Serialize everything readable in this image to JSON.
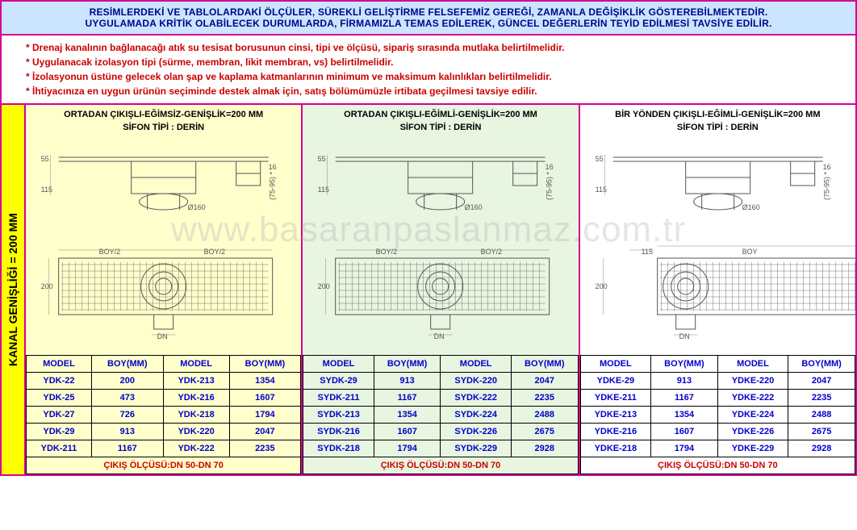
{
  "header": {
    "line1": "RESİMLERDEKİ VE TABLOLARDAKİ ÖLÇÜLER, SÜREKLİ GELİŞTİRME FELSEFEMİZ GEREĞİ, ZAMANLA DEĞİŞİKLİK GÖSTEREBİLMEKTEDİR.",
    "line2": "UYGULAMADA KRİTİK OLABİLECEK DURUMLARDA, FİRMAMIZLA TEMAS EDİLEREK, GÜNCEL DEĞERLERİN TEYİD EDİLMESİ TAVSİYE EDİLİR."
  },
  "notices": [
    "* Drenaj kanalının bağlanacağı atık su tesisat borusunun cinsi, tipi ve ölçüsü, sipariş sırasında mutlaka belirtilmelidir.",
    "* Uygulanacak izolasyon tipi (sürme, membran, likit membran, vs) belirtilmelidir.",
    "* İzolasyonun üstüne gelecek olan şap ve kaplama katmanlarının minimum ve maksimum kalınlıkları belirtilmelidir.",
    "* İhtiyacınıza en uygun ürünün seçiminde destek almak için, satış bölümümüzle irtibata geçilmesi tavsiye edilir."
  ],
  "side_label": "KANAL GENİŞLİĞİ = 200 MM",
  "watermark": "www.basaranpaslanmaz.com.tr",
  "colors": {
    "border": "#d60095",
    "header_bg": "#cce5ff",
    "header_text": "#00008b",
    "notice_text": "#cc0000",
    "side_bg": "#ffff00",
    "panel1_bg": "#ffffcc",
    "panel2_bg": "#e8f5e0",
    "panel3_bg": "#ffffff",
    "table_text": "#0000cc",
    "footer_text": "#cc0000",
    "diagram_stroke": "#555555",
    "diagram_dim": "#888888"
  },
  "panels": [
    {
      "title": "ORTADAN ÇIKIŞLI-EĞİMSİZ-GENİŞLİK=200 MM",
      "subtitle": "SİFON TİPİ : DERİN",
      "bg": "bg-yellow",
      "diagram_labels": {
        "h1": "55",
        "h2": "115",
        "d": "Ø160",
        "r1": "16",
        "r2": "(75-95) *",
        "b1": "BOY/2",
        "b2": "BOY/2",
        "w": "200",
        "dn": "DN"
      },
      "columns": [
        "MODEL",
        "BOY(MM)",
        "MODEL",
        "BOY(MM)"
      ],
      "rows": [
        [
          "YDK-22",
          "200",
          "YDK-213",
          "1354"
        ],
        [
          "YDK-25",
          "473",
          "YDK-216",
          "1607"
        ],
        [
          "YDK-27",
          "726",
          "YDK-218",
          "1794"
        ],
        [
          "YDK-29",
          "913",
          "YDK-220",
          "2047"
        ],
        [
          "YDK-211",
          "1167",
          "YDK-222",
          "2235"
        ]
      ],
      "footer": "ÇIKIŞ ÖLÇÜSÜ:DN 50-DN 70"
    },
    {
      "title": "ORTADAN ÇIKIŞLI-EĞİMLİ-GENİŞLİK=200 MM",
      "subtitle": "SİFON TİPİ : DERİN",
      "bg": "bg-green",
      "diagram_labels": {
        "h1": "55",
        "h2": "115",
        "d": "Ø160",
        "r1": "16",
        "r2": "(75-95) *",
        "b1": "BOY/2",
        "b2": "BOY/2",
        "w": "200",
        "dn": "DN"
      },
      "columns": [
        "MODEL",
        "BOY(MM)",
        "MODEL",
        "BOY(MM)"
      ],
      "rows": [
        [
          "SYDK-29",
          "913",
          "SYDK-220",
          "2047"
        ],
        [
          "SYDK-211",
          "1167",
          "SYDK-222",
          "2235"
        ],
        [
          "SYDK-213",
          "1354",
          "SYDK-224",
          "2488"
        ],
        [
          "SYDK-216",
          "1607",
          "SYDK-226",
          "2675"
        ],
        [
          "SYDK-218",
          "1794",
          "SYDK-229",
          "2928"
        ]
      ],
      "footer": "ÇIKIŞ ÖLÇÜSÜ:DN 50-DN 70"
    },
    {
      "title": "BİR YÖNDEN ÇIKIŞLI-EĞİMLİ-GENİŞLİK=200 MM",
      "subtitle": "SİFON TİPİ : DERİN",
      "bg": "bg-white",
      "diagram_labels": {
        "h1": "55",
        "h2": "115",
        "d": "Ø160",
        "r1": "16",
        "r2": "(75-95) *",
        "b1": "115",
        "b2": "BOY",
        "w": "200",
        "dn": "DN"
      },
      "columns": [
        "MODEL",
        "BOY(MM)",
        "MODEL",
        "BOY(MM)"
      ],
      "rows": [
        [
          "YDKE-29",
          "913",
          "YDKE-220",
          "2047"
        ],
        [
          "YDKE-211",
          "1167",
          "YDKE-222",
          "2235"
        ],
        [
          "YDKE-213",
          "1354",
          "YDKE-224",
          "2488"
        ],
        [
          "YDKE-216",
          "1607",
          "YDKE-226",
          "2675"
        ],
        [
          "YDKE-218",
          "1794",
          "YDKE-229",
          "2928"
        ]
      ],
      "footer": "ÇIKIŞ ÖLÇÜSÜ:DN 50-DN 70"
    }
  ]
}
